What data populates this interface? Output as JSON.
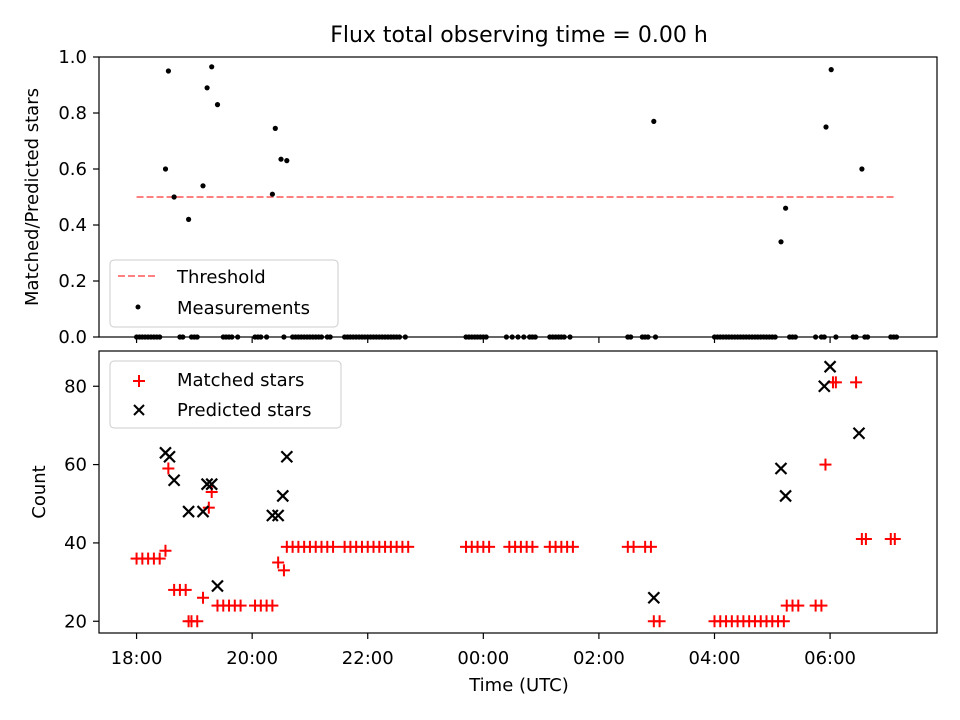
{
  "title": "Flux total observing time = 0.00 h",
  "colors": {
    "threshold": "#ff8080",
    "measurements": "#000000",
    "matched": "#ff0000",
    "predicted": "#000000"
  },
  "chart_data": [
    {
      "type": "scatter",
      "ylabel": "Matched/Predicted stars",
      "xlabel": "",
      "xlim": [
        -0.65,
        13.85
      ],
      "ylim": [
        0,
        1.0
      ],
      "yticks": [
        0.0,
        0.2,
        0.4,
        0.6,
        0.8,
        1.0
      ],
      "ytick_labels": [
        "0.0",
        "0.2",
        "0.4",
        "0.6",
        "0.8",
        "1.0"
      ],
      "legend": {
        "placement": "lower-left",
        "entries": [
          "Threshold",
          "Measurements"
        ]
      },
      "threshold": {
        "name": "Threshold",
        "x": [
          0,
          13.1
        ],
        "y": 0.5
      },
      "series": [
        {
          "name": "Measurements",
          "marker": "dot",
          "points": [
            [
              0.0,
              0
            ],
            [
              0.05,
              0
            ],
            [
              0.1,
              0
            ],
            [
              0.15,
              0
            ],
            [
              0.2,
              0
            ],
            [
              0.25,
              0
            ],
            [
              0.3,
              0
            ],
            [
              0.35,
              0
            ],
            [
              0.4,
              0
            ],
            [
              0.5,
              0.6
            ],
            [
              0.55,
              0.95
            ],
            [
              0.65,
              0.5
            ],
            [
              0.75,
              0
            ],
            [
              0.8,
              0
            ],
            [
              0.9,
              0.42
            ],
            [
              0.95,
              0
            ],
            [
              1.0,
              0
            ],
            [
              1.05,
              0
            ],
            [
              1.15,
              0.54
            ],
            [
              1.22,
              0.89
            ],
            [
              1.3,
              0.965
            ],
            [
              1.4,
              0.83
            ],
            [
              1.5,
              0
            ],
            [
              1.55,
              0
            ],
            [
              1.6,
              0
            ],
            [
              1.65,
              0
            ],
            [
              1.75,
              0
            ],
            [
              2.05,
              0
            ],
            [
              2.1,
              0
            ],
            [
              2.15,
              0
            ],
            [
              2.25,
              0
            ],
            [
              2.35,
              0.51
            ],
            [
              2.4,
              0.745
            ],
            [
              2.5,
              0.635
            ],
            [
              2.6,
              0.63
            ],
            [
              2.55,
              0
            ],
            [
              2.7,
              0
            ],
            [
              2.75,
              0
            ],
            [
              2.8,
              0
            ],
            [
              2.85,
              0
            ],
            [
              2.9,
              0
            ],
            [
              2.95,
              0
            ],
            [
              3.0,
              0
            ],
            [
              3.05,
              0
            ],
            [
              3.1,
              0
            ],
            [
              3.15,
              0
            ],
            [
              3.2,
              0
            ],
            [
              3.3,
              0
            ],
            [
              3.35,
              0
            ],
            [
              3.6,
              0
            ],
            [
              3.65,
              0
            ],
            [
              3.7,
              0
            ],
            [
              3.75,
              0
            ],
            [
              3.8,
              0
            ],
            [
              3.85,
              0
            ],
            [
              3.9,
              0
            ],
            [
              3.95,
              0
            ],
            [
              4.0,
              0
            ],
            [
              4.05,
              0
            ],
            [
              4.1,
              0
            ],
            [
              4.15,
              0
            ],
            [
              4.2,
              0
            ],
            [
              4.25,
              0
            ],
            [
              4.3,
              0
            ],
            [
              4.35,
              0
            ],
            [
              4.4,
              0
            ],
            [
              4.45,
              0
            ],
            [
              4.5,
              0
            ],
            [
              4.55,
              0
            ],
            [
              4.65,
              0
            ],
            [
              5.7,
              0
            ],
            [
              5.75,
              0
            ],
            [
              5.8,
              0
            ],
            [
              5.85,
              0
            ],
            [
              5.9,
              0
            ],
            [
              5.95,
              0
            ],
            [
              6.0,
              0
            ],
            [
              6.05,
              0
            ],
            [
              6.4,
              0
            ],
            [
              6.5,
              0
            ],
            [
              6.6,
              0
            ],
            [
              6.7,
              0
            ],
            [
              6.8,
              0
            ],
            [
              6.85,
              0
            ],
            [
              6.9,
              0
            ],
            [
              7.15,
              0
            ],
            [
              7.2,
              0
            ],
            [
              7.25,
              0
            ],
            [
              7.3,
              0
            ],
            [
              7.35,
              0
            ],
            [
              7.4,
              0
            ],
            [
              7.5,
              0
            ],
            [
              8.5,
              0
            ],
            [
              8.55,
              0
            ],
            [
              8.75,
              0
            ],
            [
              8.8,
              0
            ],
            [
              8.85,
              0
            ],
            [
              8.95,
              0.77
            ],
            [
              8.98,
              0
            ],
            [
              10.0,
              0
            ],
            [
              10.05,
              0
            ],
            [
              10.1,
              0
            ],
            [
              10.15,
              0
            ],
            [
              10.2,
              0
            ],
            [
              10.25,
              0
            ],
            [
              10.3,
              0
            ],
            [
              10.35,
              0
            ],
            [
              10.4,
              0
            ],
            [
              10.45,
              0
            ],
            [
              10.5,
              0
            ],
            [
              10.55,
              0
            ],
            [
              10.6,
              0
            ],
            [
              10.65,
              0
            ],
            [
              10.7,
              0
            ],
            [
              10.75,
              0
            ],
            [
              10.8,
              0
            ],
            [
              10.85,
              0
            ],
            [
              10.9,
              0
            ],
            [
              10.95,
              0
            ],
            [
              11.0,
              0
            ],
            [
              11.05,
              0
            ],
            [
              11.15,
              0.34
            ],
            [
              11.23,
              0.46
            ],
            [
              11.3,
              0
            ],
            [
              11.35,
              0
            ],
            [
              11.4,
              0
            ],
            [
              11.75,
              0
            ],
            [
              11.85,
              0
            ],
            [
              11.9,
              0
            ],
            [
              11.93,
              0.75
            ],
            [
              12.02,
              0.955
            ],
            [
              12.1,
              0
            ],
            [
              12.55,
              0.6
            ],
            [
              12.4,
              0
            ],
            [
              12.45,
              0
            ],
            [
              12.6,
              0
            ],
            [
              12.65,
              0
            ],
            [
              13.05,
              0
            ],
            [
              13.1,
              0
            ],
            [
              13.15,
              0
            ]
          ]
        }
      ]
    },
    {
      "type": "scatter",
      "ylabel": "Count",
      "xlabel": "Time (UTC)",
      "xlim": [
        -0.65,
        13.85
      ],
      "ylim": [
        17,
        89
      ],
      "yticks": [
        20,
        40,
        60,
        80
      ],
      "ytick_labels": [
        "20",
        "40",
        "60",
        "80"
      ],
      "xticks": [
        0,
        2,
        4,
        6,
        8,
        10,
        12
      ],
      "xtick_labels": [
        "18:00",
        "20:00",
        "22:00",
        "00:00",
        "02:00",
        "04:00",
        "06:00"
      ],
      "legend": {
        "placement": "top-left",
        "entries": [
          "Matched stars",
          "Predicted stars"
        ]
      },
      "series": [
        {
          "name": "Matched stars",
          "marker": "plus",
          "points": [
            [
              0.0,
              36
            ],
            [
              0.1,
              36
            ],
            [
              0.2,
              36
            ],
            [
              0.3,
              36
            ],
            [
              0.4,
              36
            ],
            [
              0.5,
              38
            ],
            [
              0.55,
              59
            ],
            [
              0.65,
              28
            ],
            [
              0.75,
              28
            ],
            [
              0.85,
              28
            ],
            [
              0.9,
              20
            ],
            [
              0.95,
              20
            ],
            [
              1.05,
              20
            ],
            [
              1.15,
              26
            ],
            [
              1.25,
              49
            ],
            [
              1.3,
              53
            ],
            [
              1.4,
              24
            ],
            [
              1.5,
              24
            ],
            [
              1.6,
              24
            ],
            [
              1.7,
              24
            ],
            [
              1.8,
              24
            ],
            [
              2.05,
              24
            ],
            [
              2.15,
              24
            ],
            [
              2.25,
              24
            ],
            [
              2.35,
              24
            ],
            [
              2.45,
              35
            ],
            [
              2.55,
              33
            ],
            [
              2.6,
              39
            ],
            [
              2.7,
              39
            ],
            [
              2.8,
              39
            ],
            [
              2.9,
              39
            ],
            [
              3.0,
              39
            ],
            [
              3.1,
              39
            ],
            [
              3.2,
              39
            ],
            [
              3.3,
              39
            ],
            [
              3.4,
              39
            ],
            [
              3.6,
              39
            ],
            [
              3.7,
              39
            ],
            [
              3.8,
              39
            ],
            [
              3.9,
              39
            ],
            [
              4.0,
              39
            ],
            [
              4.1,
              39
            ],
            [
              4.2,
              39
            ],
            [
              4.3,
              39
            ],
            [
              4.4,
              39
            ],
            [
              4.5,
              39
            ],
            [
              4.6,
              39
            ],
            [
              4.7,
              39
            ],
            [
              5.7,
              39
            ],
            [
              5.8,
              39
            ],
            [
              5.9,
              39
            ],
            [
              6.0,
              39
            ],
            [
              6.1,
              39
            ],
            [
              6.45,
              39
            ],
            [
              6.55,
              39
            ],
            [
              6.65,
              39
            ],
            [
              6.75,
              39
            ],
            [
              6.85,
              39
            ],
            [
              7.15,
              39
            ],
            [
              7.25,
              39
            ],
            [
              7.35,
              39
            ],
            [
              7.45,
              39
            ],
            [
              7.55,
              39
            ],
            [
              8.5,
              39
            ],
            [
              8.6,
              39
            ],
            [
              8.8,
              39
            ],
            [
              8.9,
              39
            ],
            [
              8.95,
              20
            ],
            [
              9.05,
              20
            ],
            [
              10.0,
              20
            ],
            [
              10.1,
              20
            ],
            [
              10.2,
              20
            ],
            [
              10.3,
              20
            ],
            [
              10.4,
              20
            ],
            [
              10.5,
              20
            ],
            [
              10.6,
              20
            ],
            [
              10.7,
              20
            ],
            [
              10.8,
              20
            ],
            [
              10.9,
              20
            ],
            [
              11.0,
              20
            ],
            [
              11.1,
              20
            ],
            [
              11.2,
              20
            ],
            [
              11.25,
              24
            ],
            [
              11.35,
              24
            ],
            [
              11.45,
              24
            ],
            [
              11.75,
              24
            ],
            [
              11.85,
              24
            ],
            [
              11.92,
              60
            ],
            [
              12.05,
              81
            ],
            [
              12.1,
              81
            ],
            [
              12.45,
              81
            ],
            [
              12.55,
              41
            ],
            [
              12.62,
              41
            ],
            [
              13.05,
              41
            ],
            [
              13.12,
              41
            ]
          ]
        },
        {
          "name": "Predicted stars",
          "marker": "x",
          "points": [
            [
              0.5,
              63
            ],
            [
              0.57,
              62
            ],
            [
              0.65,
              56
            ],
            [
              0.9,
              48
            ],
            [
              1.15,
              48
            ],
            [
              1.22,
              55
            ],
            [
              1.3,
              55
            ],
            [
              1.4,
              29
            ],
            [
              2.35,
              47
            ],
            [
              2.45,
              47
            ],
            [
              2.53,
              52
            ],
            [
              2.6,
              62
            ],
            [
              8.95,
              26
            ],
            [
              11.15,
              59
            ],
            [
              11.23,
              52
            ],
            [
              11.9,
              80
            ],
            [
              12.0,
              85
            ],
            [
              12.5,
              68
            ]
          ]
        }
      ]
    }
  ]
}
